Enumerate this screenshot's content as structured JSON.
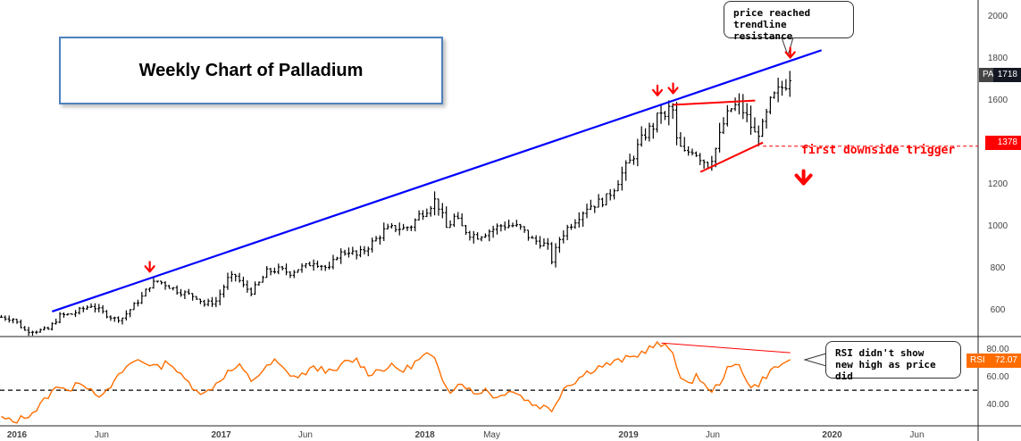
{
  "title": "Weekly Chart of Palladium",
  "annotations": {
    "top_callout": [
      "price reached",
      "trendline resistance"
    ],
    "rsi_callout": [
      "RSI didn't show",
      "new high as price did"
    ],
    "trigger_text": "first downside trigger"
  },
  "price_tags": {
    "symbol": "PA1!",
    "last_price": "1718",
    "trigger_level": "1378",
    "rsi_symbol": "RSI",
    "rsi_value": "72.07"
  },
  "colors": {
    "trendline": "#0000ff",
    "triangle": "#ff0000",
    "rsi_line": "#ff6d00",
    "arrows": "#ff0000",
    "bars": "#000000"
  },
  "chart_data": {
    "type": "ohlc",
    "price_axis": {
      "ticks": [
        600,
        800,
        1000,
        1200,
        1400,
        1600,
        1800,
        2000
      ],
      "range": [
        475,
        2070
      ]
    },
    "rsi_axis": {
      "ticks": [
        40.0,
        60.0,
        80.0
      ],
      "range": [
        25,
        88
      ],
      "midline": 50
    },
    "x_axis": {
      "labels": [
        "2016",
        "Jun",
        "2017",
        "Jun",
        "2018",
        "May",
        "2019",
        "Jun",
        "2020",
        "Jun"
      ]
    },
    "price_weeks": [
      {
        "d": "2015-12-04",
        "c": 563
      },
      {
        "d": "2015-12-25",
        "c": 555
      },
      {
        "d": "2016-01-15",
        "c": 500
      },
      {
        "d": "2016-02-05",
        "c": 498
      },
      {
        "d": "2016-02-26",
        "c": 505
      },
      {
        "d": "2016-03-18",
        "c": 570
      },
      {
        "d": "2016-04-08",
        "c": 578
      },
      {
        "d": "2016-04-22",
        "c": 595
      },
      {
        "d": "2016-05-13",
        "c": 620
      },
      {
        "d": "2016-06-03",
        "c": 585
      },
      {
        "d": "2016-06-24",
        "c": 555
      },
      {
        "d": "2016-07-08",
        "c": 560
      },
      {
        "d": "2016-07-29",
        "c": 620
      },
      {
        "d": "2016-08-12",
        "c": 660
      },
      {
        "d": "2016-08-26",
        "c": 715
      },
      {
        "d": "2016-09-09",
        "c": 735
      },
      {
        "d": "2016-09-23",
        "c": 720
      },
      {
        "d": "2016-10-14",
        "c": 690
      },
      {
        "d": "2016-11-04",
        "c": 670
      },
      {
        "d": "2016-11-18",
        "c": 660
      },
      {
        "d": "2016-12-02",
        "c": 625
      },
      {
        "d": "2016-12-23",
        "c": 640
      },
      {
        "d": "2017-01-13",
        "c": 745
      },
      {
        "d": "2017-01-27",
        "c": 760
      },
      {
        "d": "2017-02-10",
        "c": 710
      },
      {
        "d": "2017-02-24",
        "c": 685
      },
      {
        "d": "2017-03-10",
        "c": 725
      },
      {
        "d": "2017-03-24",
        "c": 780
      },
      {
        "d": "2017-04-14",
        "c": 790
      },
      {
        "d": "2017-05-05",
        "c": 775
      },
      {
        "d": "2017-05-19",
        "c": 795
      },
      {
        "d": "2017-06-02",
        "c": 805
      },
      {
        "d": "2017-06-16",
        "c": 830
      },
      {
        "d": "2017-06-30",
        "c": 810
      },
      {
        "d": "2017-07-14",
        "c": 790
      },
      {
        "d": "2017-07-28",
        "c": 860
      },
      {
        "d": "2017-08-18",
        "c": 880
      },
      {
        "d": "2017-09-01",
        "c": 855
      },
      {
        "d": "2017-09-15",
        "c": 885
      },
      {
        "d": "2017-10-06",
        "c": 935
      },
      {
        "d": "2017-10-20",
        "c": 975
      },
      {
        "d": "2017-11-10",
        "c": 990
      },
      {
        "d": "2017-11-24",
        "c": 985
      },
      {
        "d": "2017-12-08",
        "c": 1000
      },
      {
        "d": "2017-12-22",
        "c": 1050
      },
      {
        "d": "2018-01-05",
        "c": 1080
      },
      {
        "d": "2018-01-19",
        "c": 1120
      },
      {
        "d": "2018-01-26",
        "c": 1090
      },
      {
        "d": "2018-02-09",
        "c": 985
      },
      {
        "d": "2018-02-23",
        "c": 1040
      },
      {
        "d": "2018-03-09",
        "c": 990
      },
      {
        "d": "2018-03-23",
        "c": 960
      },
      {
        "d": "2018-04-06",
        "c": 950
      },
      {
        "d": "2018-04-27",
        "c": 975
      },
      {
        "d": "2018-05-18",
        "c": 1000
      },
      {
        "d": "2018-06-08",
        "c": 1000
      },
      {
        "d": "2018-06-22",
        "c": 985
      },
      {
        "d": "2018-07-13",
        "c": 930
      },
      {
        "d": "2018-07-27",
        "c": 920
      },
      {
        "d": "2018-08-10",
        "c": 895
      },
      {
        "d": "2018-08-17",
        "c": 830
      },
      {
        "d": "2018-08-31",
        "c": 940
      },
      {
        "d": "2018-09-14",
        "c": 990
      },
      {
        "d": "2018-10-05",
        "c": 1050
      },
      {
        "d": "2018-10-19",
        "c": 1090
      },
      {
        "d": "2018-11-09",
        "c": 1110
      },
      {
        "d": "2018-11-23",
        "c": 1130
      },
      {
        "d": "2018-12-07",
        "c": 1185
      },
      {
        "d": "2018-12-21",
        "c": 1250
      },
      {
        "d": "2019-01-04",
        "c": 1305
      },
      {
        "d": "2019-01-18",
        "c": 1375
      },
      {
        "d": "2019-02-01",
        "c": 1440
      },
      {
        "d": "2019-02-15",
        "c": 1475
      },
      {
        "d": "2019-03-01",
        "c": 1550
      },
      {
        "d": "2019-03-08",
        "c": 1500
      },
      {
        "d": "2019-03-15",
        "c": 1560
      },
      {
        "d": "2019-03-22",
        "c": 1545
      },
      {
        "d": "2019-03-29",
        "c": 1390
      },
      {
        "d": "2019-04-12",
        "c": 1340
      },
      {
        "d": "2019-04-26",
        "c": 1365
      },
      {
        "d": "2019-05-10",
        "c": 1325
      },
      {
        "d": "2019-05-24",
        "c": 1290
      },
      {
        "d": "2019-06-07",
        "c": 1370
      },
      {
        "d": "2019-06-21",
        "c": 1490
      },
      {
        "d": "2019-07-05",
        "c": 1560
      },
      {
        "d": "2019-07-19",
        "c": 1575
      },
      {
        "d": "2019-08-02",
        "c": 1510
      },
      {
        "d": "2019-08-16",
        "c": 1430
      },
      {
        "d": "2019-08-30",
        "c": 1470
      },
      {
        "d": "2019-09-13",
        "c": 1590
      },
      {
        "d": "2019-09-27",
        "c": 1640
      },
      {
        "d": "2019-10-11",
        "c": 1680
      },
      {
        "d": "2019-10-18",
        "c": 1718
      }
    ],
    "rsi_weeks": [
      {
        "d": "2015-12-04",
        "v": 30
      },
      {
        "d": "2015-12-25",
        "v": 27
      },
      {
        "d": "2016-01-15",
        "v": 31
      },
      {
        "d": "2016-02-05",
        "v": 36
      },
      {
        "d": "2016-02-26",
        "v": 46
      },
      {
        "d": "2016-03-18",
        "v": 54
      },
      {
        "d": "2016-04-08",
        "v": 49
      },
      {
        "d": "2016-04-22",
        "v": 57
      },
      {
        "d": "2016-05-13",
        "v": 51
      },
      {
        "d": "2016-06-03",
        "v": 45
      },
      {
        "d": "2016-06-24",
        "v": 56
      },
      {
        "d": "2016-07-15",
        "v": 67
      },
      {
        "d": "2016-08-05",
        "v": 72
      },
      {
        "d": "2016-08-26",
        "v": 69
      },
      {
        "d": "2016-09-09",
        "v": 66
      },
      {
        "d": "2016-09-30",
        "v": 71
      },
      {
        "d": "2016-10-21",
        "v": 60
      },
      {
        "d": "2016-11-11",
        "v": 53
      },
      {
        "d": "2016-12-02",
        "v": 47
      },
      {
        "d": "2016-12-23",
        "v": 55
      },
      {
        "d": "2017-01-13",
        "v": 63
      },
      {
        "d": "2017-02-03",
        "v": 67
      },
      {
        "d": "2017-02-24",
        "v": 57
      },
      {
        "d": "2017-03-17",
        "v": 64
      },
      {
        "d": "2017-04-07",
        "v": 71
      },
      {
        "d": "2017-04-28",
        "v": 63
      },
      {
        "d": "2017-05-19",
        "v": 59
      },
      {
        "d": "2017-06-09",
        "v": 65
      },
      {
        "d": "2017-06-30",
        "v": 66
      },
      {
        "d": "2017-07-21",
        "v": 62
      },
      {
        "d": "2017-08-11",
        "v": 70
      },
      {
        "d": "2017-09-01",
        "v": 72
      },
      {
        "d": "2017-09-22",
        "v": 62
      },
      {
        "d": "2017-10-13",
        "v": 65
      },
      {
        "d": "2017-11-03",
        "v": 67
      },
      {
        "d": "2017-11-24",
        "v": 64
      },
      {
        "d": "2017-12-15",
        "v": 70
      },
      {
        "d": "2018-01-05",
        "v": 76
      },
      {
        "d": "2018-01-19",
        "v": 71
      },
      {
        "d": "2018-02-02",
        "v": 58
      },
      {
        "d": "2018-02-16",
        "v": 50
      },
      {
        "d": "2018-03-09",
        "v": 56
      },
      {
        "d": "2018-03-30",
        "v": 47
      },
      {
        "d": "2018-04-20",
        "v": 51
      },
      {
        "d": "2018-05-11",
        "v": 44
      },
      {
        "d": "2018-06-01",
        "v": 51
      },
      {
        "d": "2018-06-22",
        "v": 46
      },
      {
        "d": "2018-07-13",
        "v": 40
      },
      {
        "d": "2018-08-03",
        "v": 38
      },
      {
        "d": "2018-08-17",
        "v": 36
      },
      {
        "d": "2018-09-07",
        "v": 52
      },
      {
        "d": "2018-09-28",
        "v": 57
      },
      {
        "d": "2018-10-19",
        "v": 63
      },
      {
        "d": "2018-11-09",
        "v": 67
      },
      {
        "d": "2018-11-30",
        "v": 69
      },
      {
        "d": "2018-12-21",
        "v": 72
      },
      {
        "d": "2019-01-11",
        "v": 74
      },
      {
        "d": "2019-02-01",
        "v": 79
      },
      {
        "d": "2019-02-22",
        "v": 83
      },
      {
        "d": "2019-03-08",
        "v": 81
      },
      {
        "d": "2019-03-22",
        "v": 78
      },
      {
        "d": "2019-04-05",
        "v": 58
      },
      {
        "d": "2019-04-19",
        "v": 53
      },
      {
        "d": "2019-05-03",
        "v": 62
      },
      {
        "d": "2019-05-24",
        "v": 49
      },
      {
        "d": "2019-06-07",
        "v": 52
      },
      {
        "d": "2019-06-28",
        "v": 65
      },
      {
        "d": "2019-07-19",
        "v": 69
      },
      {
        "d": "2019-08-09",
        "v": 51
      },
      {
        "d": "2019-08-23",
        "v": 55
      },
      {
        "d": "2019-09-13",
        "v": 64
      },
      {
        "d": "2019-10-04",
        "v": 69
      },
      {
        "d": "2019-10-18",
        "v": 72.07
      }
    ],
    "trendline": {
      "from": {
        "d": "2016-03-04",
        "v": 590
      },
      "to": {
        "d": "2019-12-13",
        "v": 1835
      }
    },
    "triangle": [
      {
        "from": {
          "d": "2019-03-22",
          "v": 1575
        },
        "to": {
          "d": "2019-08-16",
          "v": 1595
        }
      },
      {
        "from": {
          "d": "2019-05-10",
          "v": 1255
        },
        "to": {
          "d": "2019-08-30",
          "v": 1395
        }
      }
    ],
    "trigger_line": 1378,
    "rsi_divergence": {
      "from": {
        "d": "2019-03-01",
        "v": 84
      },
      "to": {
        "d": "2019-10-18",
        "v": 77
      }
    },
    "arrows": [
      {
        "d": "2016-08-26",
        "v": 780
      },
      {
        "d": "2019-02-22",
        "v": 1620
      },
      {
        "d": "2019-03-22",
        "v": 1630
      },
      {
        "d": "2019-10-18",
        "v": 1800
      }
    ],
    "big_down_arrow": {
      "d": "2019-09-27",
      "v": 1200
    }
  }
}
